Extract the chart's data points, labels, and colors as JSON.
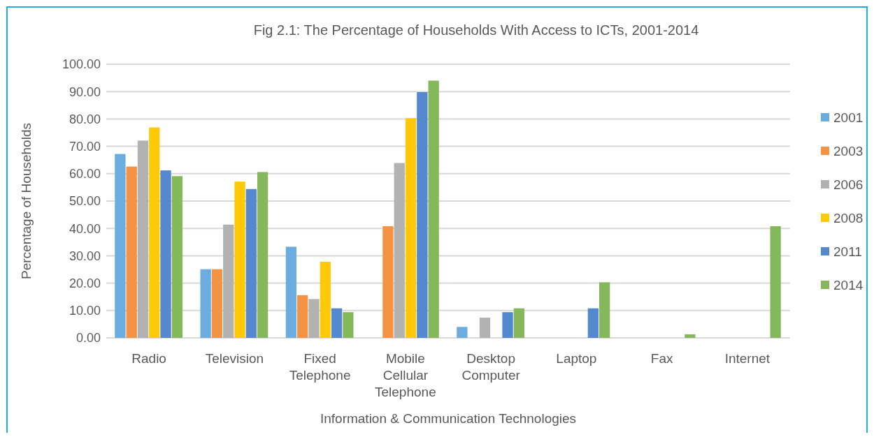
{
  "chart_data": {
    "type": "bar",
    "title": "Fig 2.1: The Percentage of Households With Access to ICTs, 2001-2014",
    "xlabel": "Information & Communication Technologies",
    "ylabel": "Percentage of Households",
    "categories": [
      "Radio",
      "Television",
      "Fixed Telephone",
      "Mobile Cellular Telephone",
      "Desktop Computer",
      "Laptop",
      "Fax",
      "Internet"
    ],
    "series": [
      {
        "name": "2001",
        "color": "#6caddf",
        "values": [
          67.2,
          25.1,
          33.3,
          null,
          4.0,
          null,
          null,
          null
        ]
      },
      {
        "name": "2003",
        "color": "#f39343",
        "values": [
          62.6,
          25.1,
          15.6,
          40.8,
          null,
          null,
          null,
          null
        ]
      },
      {
        "name": "2006",
        "color": "#b2b2b2",
        "values": [
          72.1,
          41.4,
          14.2,
          63.9,
          7.4,
          null,
          null,
          null
        ]
      },
      {
        "name": "2008",
        "color": "#ffc90a",
        "values": [
          76.9,
          57.1,
          27.8,
          80.3,
          null,
          null,
          null,
          null
        ]
      },
      {
        "name": "2011",
        "color": "#5588cf",
        "values": [
          61.2,
          54.4,
          10.8,
          89.8,
          9.4,
          10.8,
          null,
          null
        ]
      },
      {
        "name": "2014",
        "color": "#84b85a",
        "values": [
          59.1,
          60.6,
          9.4,
          94.0,
          10.8,
          20.3,
          1.3,
          40.8
        ]
      }
    ],
    "ylim": [
      0,
      100
    ],
    "yticks": [
      {
        "value": 0,
        "label": "0.00"
      },
      {
        "value": 10,
        "label": "10.00"
      },
      {
        "value": 20,
        "label": "20.00"
      },
      {
        "value": 30,
        "label": "30.00"
      },
      {
        "value": 40,
        "label": "40.00"
      },
      {
        "value": 50,
        "label": "50.00"
      },
      {
        "value": 60,
        "label": "60.00"
      },
      {
        "value": 70,
        "label": "70.00"
      },
      {
        "value": 80,
        "label": "80.00"
      },
      {
        "value": 90,
        "label": "90.00"
      },
      {
        "value": 100,
        "label": "100.00"
      }
    ],
    "grid": "y",
    "legend": "right"
  }
}
